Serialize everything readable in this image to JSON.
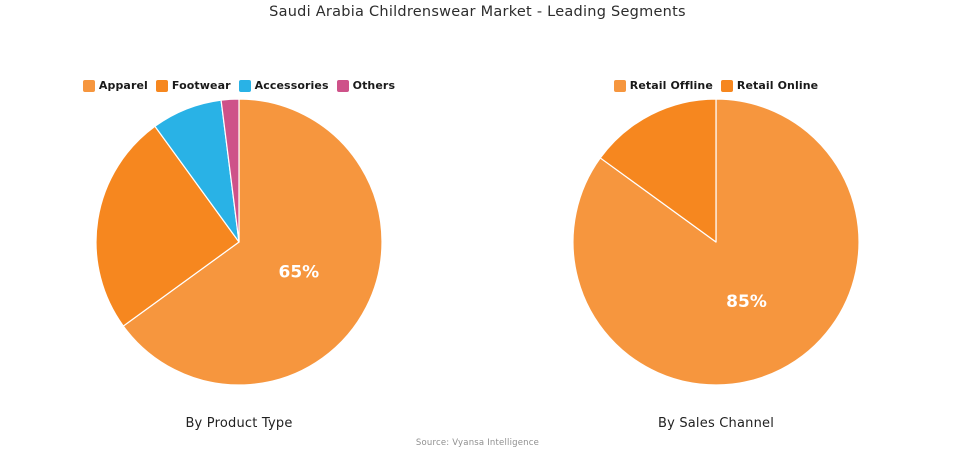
{
  "title": "Saudi Arabia Childrenswear Market - Leading Segments",
  "source": "Source: Vyansa Intelligence",
  "styles": {
    "label_color": "#ffffff",
    "slice_border_color": "#ffffff",
    "title_color": "#2d2d2d",
    "panel_title_color": "#212121",
    "source_color": "#8f8f8f"
  },
  "chart_data": [
    {
      "type": "pie",
      "title": "By Product Type",
      "legend_position": "top",
      "start_angle_deg": 0,
      "direction": "clockwise",
      "slices": [
        {
          "name": "Apparel",
          "value": 65,
          "color": "#F6963E",
          "label": "65%"
        },
        {
          "name": "Footwear",
          "value": 25,
          "color": "#F6871F",
          "label": ""
        },
        {
          "name": "Accessories",
          "value": 8,
          "color": "#29B2E6",
          "label": ""
        },
        {
          "name": "Others",
          "value": 2,
          "color": "#CE5289",
          "label": ""
        }
      ]
    },
    {
      "type": "pie",
      "title": "By Sales Channel",
      "legend_position": "top",
      "start_angle_deg": 0,
      "direction": "clockwise",
      "slices": [
        {
          "name": "Retail Offline",
          "value": 85,
          "color": "#F6963E",
          "label": "85%"
        },
        {
          "name": "Retail Online",
          "value": 15,
          "color": "#F6871F",
          "label": ""
        }
      ]
    }
  ]
}
